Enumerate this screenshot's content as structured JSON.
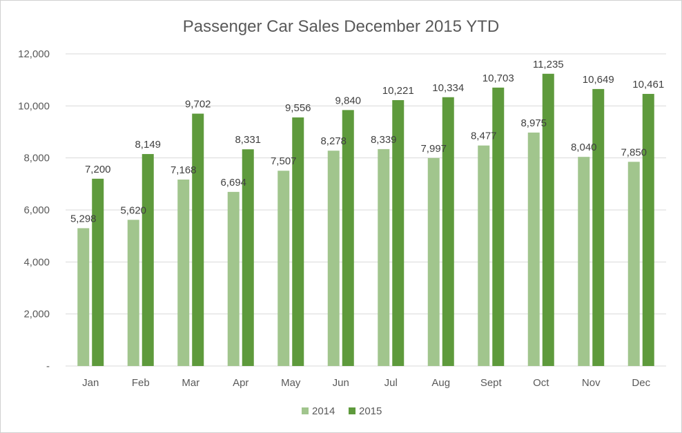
{
  "chart_data": {
    "type": "bar",
    "title": "Passenger Car Sales December 2015 YTD",
    "xlabel": "",
    "ylabel": "",
    "categories": [
      "Jan",
      "Feb",
      "Mar",
      "Apr",
      "May",
      "Jun",
      "Jul",
      "Aug",
      "Sept",
      "Oct",
      "Nov",
      "Dec"
    ],
    "series": [
      {
        "name": "2014",
        "color": "#a1c58d",
        "values": [
          5298,
          5620,
          7168,
          6694,
          7507,
          8278,
          8339,
          7997,
          8477,
          8975,
          8040,
          7850
        ],
        "labels": [
          "5,298",
          "5,620",
          "7,168",
          "6,694",
          "7,507",
          "8,278",
          "8,339",
          "7,997",
          "8,477",
          "8,975",
          "8,040",
          "7,850"
        ]
      },
      {
        "name": "2015",
        "color": "#5e9a3c",
        "values": [
          7200,
          8149,
          9702,
          8331,
          9556,
          9840,
          10221,
          10334,
          10703,
          11235,
          10649,
          10461
        ],
        "labels": [
          "7,200",
          "8,149",
          "9,702",
          "8,331",
          "9,556",
          "9,840",
          "10,221",
          "10,334",
          "10,703",
          "11,235",
          "10,649",
          "10,461"
        ]
      }
    ],
    "ylim": [
      0,
      12000
    ],
    "yticks": [
      0,
      2000,
      4000,
      6000,
      8000,
      10000,
      12000
    ],
    "ytick_labels": [
      "-",
      "2,000",
      "4,000",
      "6,000",
      "8,000",
      "10,000",
      "12,000"
    ],
    "grid": true,
    "legend_position": "bottom",
    "gridline_color": "#d9d9d9"
  }
}
